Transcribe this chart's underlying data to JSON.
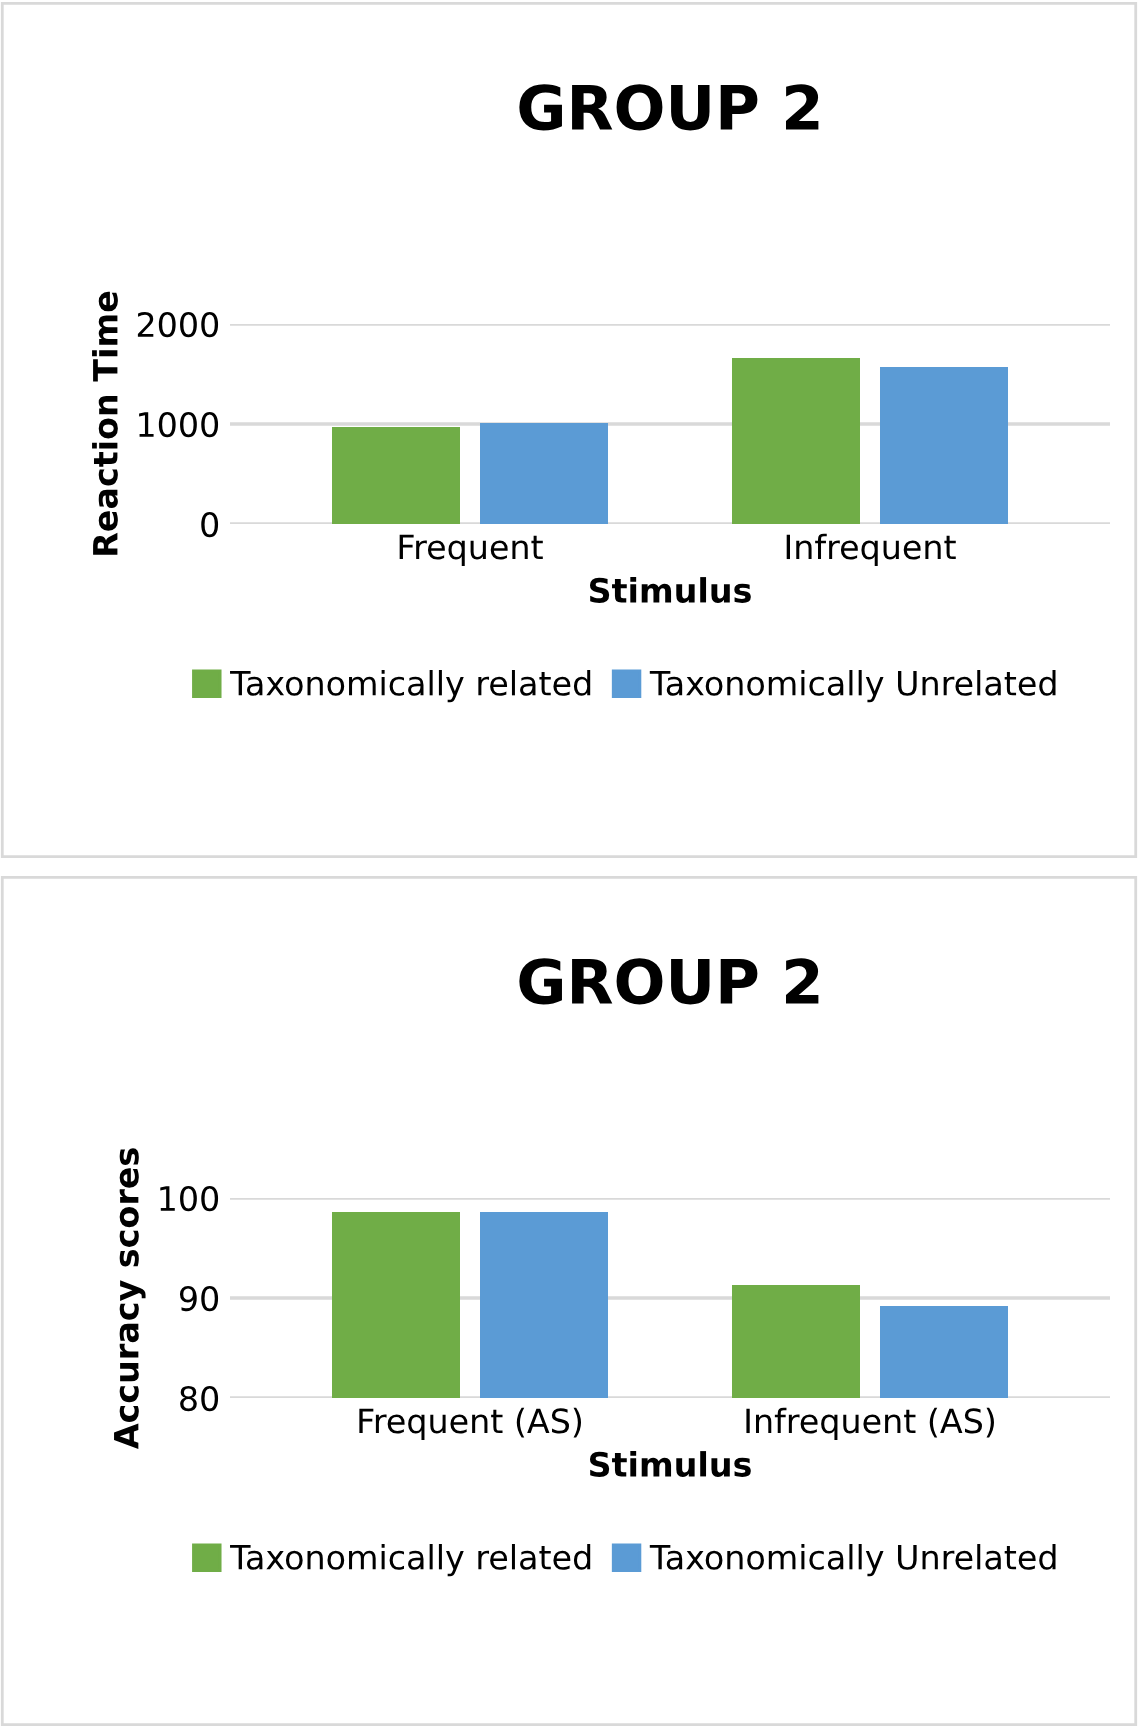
{
  "chart_data": [
    {
      "type": "bar",
      "title": "GROUP 2",
      "xlabel": "Stimulus",
      "ylabel": "Reaction Time",
      "categories": [
        "Frequent",
        "Infrequent"
      ],
      "series": [
        {
          "name": "Taxonomically related",
          "color": "#70ad47",
          "values": [
            970,
            1660
          ]
        },
        {
          "name": "Taxonomically Unrelated",
          "color": "#5b9bd5",
          "values": [
            1010,
            1570
          ]
        }
      ],
      "ylim": [
        0,
        2000
      ],
      "yticks": [
        0,
        1000,
        2000
      ],
      "grid": "y",
      "legend": "bottom"
    },
    {
      "type": "bar",
      "title": "GROUP 2",
      "xlabel": "Stimulus",
      "ylabel": "Accuracy scores",
      "categories": [
        "Frequent (AS)",
        "Infrequent (AS)"
      ],
      "series": [
        {
          "name": "Taxonomically related",
          "color": "#70ad47",
          "values": [
            98.6,
            91.3
          ]
        },
        {
          "name": "Taxonomically Unrelated",
          "color": "#5b9bd5",
          "values": [
            98.6,
            89.2
          ]
        }
      ],
      "ylim": [
        80,
        100
      ],
      "yticks": [
        80,
        90,
        100
      ],
      "grid": "y",
      "legend": "bottom"
    }
  ]
}
